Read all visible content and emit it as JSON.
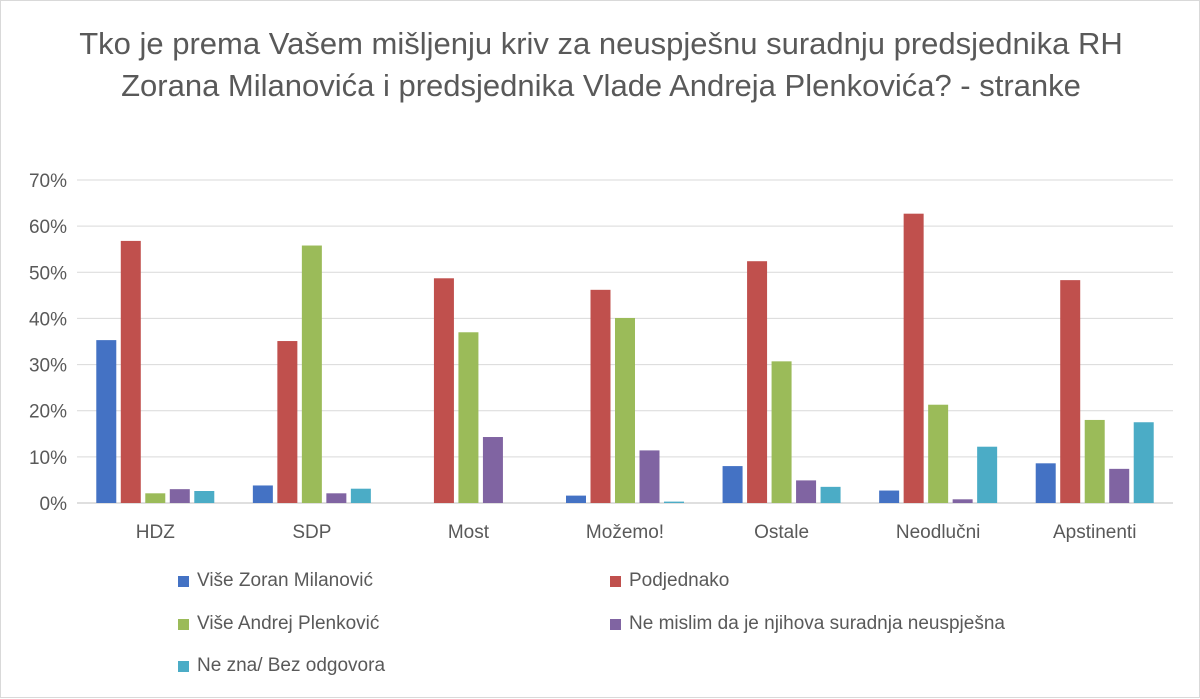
{
  "chart_data": {
    "type": "bar",
    "title": "Tko je prema Vašem mišljenju kriv za neuspješnu suradnju predsjednika RH Zorana Milanovića i predsjednika Vlade Andreja Plenkovića? - stranke",
    "categories": [
      "HDZ",
      "SDP",
      "Most",
      "Možemo!",
      "Ostale",
      "Neodlučni",
      "Apstinenti"
    ],
    "ylim": [
      0,
      70
    ],
    "yticks": [
      "0%",
      "10%",
      "20%",
      "30%",
      "40%",
      "50%",
      "60%",
      "70%"
    ],
    "grid": true,
    "legend_position": "bottom",
    "series": [
      {
        "name": "Više Zoran Milanović",
        "color": "#4472c4",
        "values": [
          35.3,
          3.8,
          0,
          1.6,
          8.0,
          2.7,
          8.6
        ]
      },
      {
        "name": "Podjednako",
        "color": "#c0504d",
        "values": [
          56.8,
          35.1,
          48.7,
          46.2,
          52.4,
          62.7,
          48.3
        ]
      },
      {
        "name": "Više Andrej Plenković",
        "color": "#9bbb59",
        "values": [
          2.1,
          55.8,
          37.0,
          40.1,
          30.7,
          21.3,
          18.0
        ]
      },
      {
        "name": "Ne mislim da je njihova suradnja neuspješna",
        "color": "#8064a2",
        "values": [
          3.0,
          2.1,
          14.3,
          11.4,
          4.9,
          0.8,
          7.4
        ]
      },
      {
        "name": "Ne zna/ Bez odgovora",
        "color": "#4bacc6",
        "values": [
          2.6,
          3.1,
          0,
          0.3,
          3.5,
          12.2,
          17.5
        ]
      }
    ]
  }
}
